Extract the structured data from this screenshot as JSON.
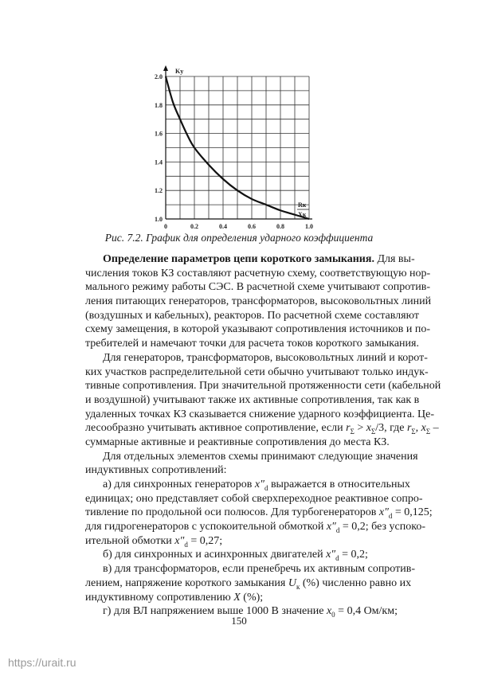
{
  "chart_data": {
    "type": "line",
    "title": "",
    "ylabel": "Kу",
    "xlabel_num": "Rк",
    "xlabel_den": "Xк",
    "xlim": [
      0,
      1.0
    ],
    "ylim": [
      1.0,
      2.0
    ],
    "grid": true,
    "x_ticks": [
      "0",
      "0.2",
      "0.4",
      "0.6",
      "0.8",
      "1.0"
    ],
    "y_ticks": [
      "1.0",
      "1.2",
      "1.4",
      "1.6",
      "1.8",
      "2.0"
    ],
    "x": [
      0,
      0.05,
      0.1,
      0.15,
      0.2,
      0.3,
      0.4,
      0.5,
      0.6,
      0.7,
      0.8,
      0.9,
      1.0
    ],
    "y": [
      2.0,
      1.82,
      1.7,
      1.59,
      1.5,
      1.38,
      1.28,
      1.2,
      1.14,
      1.1,
      1.06,
      1.03,
      1.0
    ]
  },
  "caption": "Рис. 7.2. График для определения ударного коэффициента",
  "lines": [
    {
      "ind": true,
      "seg": [
        {
          "b": "Определение параметров цепи короткого замыкания."
        },
        " Для вы-"
      ]
    },
    {
      "seg": [
        "числения токов КЗ составляют расчетную схему, соответствующую нор-"
      ]
    },
    {
      "seg": [
        "мального режиму работы СЭС. В расчетной схеме учитывают сопротив-"
      ]
    },
    {
      "seg": [
        "ления питающих генераторов, трансформаторов, высоковольтных линий"
      ]
    },
    {
      "seg": [
        "(воздушных и кабельных), реакторов. По расчетной схеме составляют"
      ]
    },
    {
      "seg": [
        "схему замещения, в которой указывают сопротивления источников и по-"
      ]
    },
    {
      "last": true,
      "seg": [
        "требителей и намечают точки для расчета токов короткого замыкания."
      ]
    },
    {
      "ind": true,
      "seg": [
        "Для генераторов, трансформаторов, высоковольтных линий и корот-"
      ]
    },
    {
      "seg": [
        "ких участков распределительной сети обычно учитывают только индук-"
      ]
    },
    {
      "seg": [
        "тивные сопротивления. При значительной протяженности сети (кабельной"
      ]
    },
    {
      "seg": [
        "и воздушной) учитывают также их активные сопротивления, так как в"
      ]
    },
    {
      "seg": [
        "удаленных точках КЗ сказывается снижение ударного коэффициента. Це-"
      ]
    },
    {
      "seg": [
        "лесообразно учитывать активное сопротивление, если ",
        {
          "i": "r"
        },
        {
          "sub": "Σ"
        },
        " > ",
        {
          "i": "x"
        },
        {
          "sub": "Σ"
        },
        "/3, где ",
        {
          "i": "r"
        },
        {
          "sub": "Σ"
        },
        ", ",
        {
          "i": "x"
        },
        {
          "sub": "Σ"
        },
        " –"
      ]
    },
    {
      "last": true,
      "seg": [
        "суммарные активные и реактивные сопротивления до места КЗ."
      ]
    },
    {
      "ind": true,
      "seg": [
        "Для отдельных элементов схемы принимают следующие значения"
      ]
    },
    {
      "last": true,
      "seg": [
        "индуктивных  сопротивлений:"
      ]
    },
    {
      "ind": true,
      "seg": [
        "а)  для синхронных генераторов ",
        {
          "i": "x″"
        },
        {
          "sub": "d"
        },
        " выражается в относительных"
      ]
    },
    {
      "seg": [
        "единицах; оно представляет собой сверхпереходное реактивное сопро-"
      ]
    },
    {
      "seg": [
        "тивление по продольной оси полюсов. Для турбогенераторов ",
        {
          "i": "x″"
        },
        {
          "sub": "d"
        },
        " = 0,125;"
      ]
    },
    {
      "seg": [
        "для гидрогенераторов с успокоительной обмоткой ",
        {
          "i": "x″"
        },
        {
          "sub": "d"
        },
        " = 0,2; без успоко-"
      ]
    },
    {
      "last": true,
      "seg": [
        "ительной обмотки ",
        {
          "i": "x″"
        },
        {
          "sub": "d"
        },
        " = 0,27;"
      ]
    },
    {
      "ind": true,
      "last": true,
      "seg": [
        "б)  для синхронных и асинхронных двигателей ",
        {
          "i": "x″"
        },
        {
          "sub": "d"
        },
        " = 0,2;"
      ]
    },
    {
      "ind": true,
      "seg": [
        "в)  для трансформаторов, если пренебречь их активным сопротив-"
      ]
    },
    {
      "seg": [
        "лением, напряжение короткого замыкания ",
        {
          "i": "U"
        },
        {
          "sub": "к"
        },
        " (%) численно равно их"
      ]
    },
    {
      "last": true,
      "seg": [
        "индуктивному сопротивлению ",
        {
          "i": "X"
        },
        " (%);"
      ]
    },
    {
      "ind": true,
      "last": true,
      "seg": [
        "г)  для ВЛ напряжением выше 1000 В значение ",
        {
          "i": "x"
        },
        {
          "sub": "0"
        },
        " = 0,4 Ом/км;"
      ]
    }
  ],
  "page_number": "150",
  "watermark": "https://urait.ru"
}
